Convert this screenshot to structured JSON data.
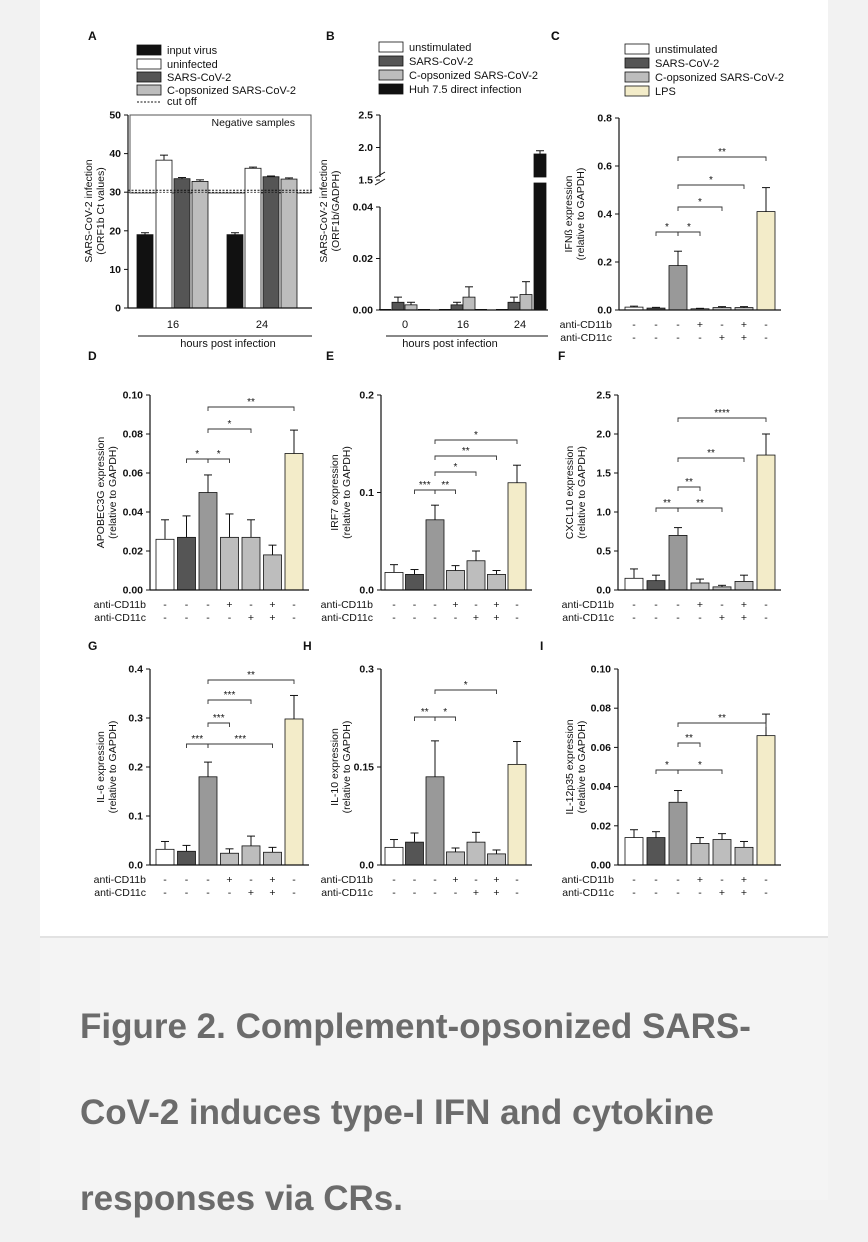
{
  "caption": {
    "text": "Figure 2. Complement-opsonized SARS-CoV-2 induces type-I IFN and cytokine responses via CRs."
  },
  "colors": {
    "black": "#111111",
    "white": "#ffffff",
    "dark": "#555555",
    "mid": "#999999",
    "light": "#bdbdbd",
    "lps": "#f3ecc9",
    "text": "#6b6b6b"
  },
  "chart_data": [
    {
      "id": "A",
      "type": "bar",
      "ylabel": [
        "SARS-CoV-2 infection",
        "(ORF1b Ct values)"
      ],
      "xlabel": "hours post infection",
      "ylim": [
        0,
        50
      ],
      "yticks": [
        "0",
        "10",
        "20",
        "30",
        "40",
        "50"
      ],
      "categories": [
        "16",
        "24"
      ],
      "legend": [
        "input virus",
        "uninfected",
        "SARS-CoV-2",
        "C-opsonized SARS-CoV-2",
        "cut off"
      ],
      "annotation": "Negative samples",
      "cutoff": 30.5,
      "series": [
        {
          "name": "input virus",
          "values": [
            19,
            19
          ],
          "errors": [
            0.5,
            0.5
          ]
        },
        {
          "name": "uninfected",
          "values": [
            38.3,
            36.2
          ],
          "errors": [
            1.3,
            0.3
          ]
        },
        {
          "name": "SARS-CoV-2",
          "values": [
            33.5,
            34
          ],
          "errors": [
            0.3,
            0.2
          ]
        },
        {
          "name": "C-opsonized SARS-CoV-2",
          "values": [
            32.8,
            33.4
          ],
          "errors": [
            0.4,
            0.3
          ]
        }
      ]
    },
    {
      "id": "B",
      "type": "bar",
      "ylabel": [
        "SARS-CoV-2 infection",
        "(ORF1b/GADPH)"
      ],
      "xlabel": "hours post infection",
      "yticks": [
        "0.00",
        "0.02",
        "0.04",
        "1.5",
        "2.0",
        "2.5"
      ],
      "categories": [
        "0",
        "16",
        "24"
      ],
      "legend": [
        "unstimulated",
        "SARS-CoV-2",
        "C-opsonized SARS-CoV-2",
        "Huh 7.5 direct infection"
      ],
      "series": [
        {
          "name": "unstimulated",
          "values": [
            0,
            0,
            0
          ],
          "errors": [
            0,
            0,
            0
          ]
        },
        {
          "name": "SARS-CoV-2",
          "values": [
            0.003,
            0.002,
            0.003
          ],
          "errors": [
            0.002,
            0.001,
            0.002
          ]
        },
        {
          "name": "C-opsonized SARS-CoV-2",
          "values": [
            0.002,
            0.005,
            0.006
          ],
          "errors": [
            0.001,
            0.004,
            0.005
          ]
        },
        {
          "name": "Huh 7.5 direct infection",
          "values": [
            0,
            0,
            1.9
          ],
          "errors": [
            0,
            0,
            0.05
          ]
        }
      ]
    },
    {
      "id": "C",
      "type": "bar",
      "ylabel": [
        "IFNß expression",
        "(relative to GAPDH)"
      ],
      "ylim": [
        0,
        0.8
      ],
      "yticks": [
        "0.0",
        "0.2",
        "0.4",
        "0.6",
        "0.8"
      ],
      "legend": [
        "unstimulated",
        "SARS-CoV-2",
        "C-opsonized SARS-CoV-2",
        "LPS"
      ],
      "values": [
        0.012,
        0.008,
        0.185,
        0.005,
        0.01,
        0.01,
        0.41
      ],
      "errors": [
        0.004,
        0.003,
        0.06,
        0.002,
        0.004,
        0.004,
        0.1
      ],
      "sig": [
        "**",
        "*",
        "*",
        "*",
        "*"
      ]
    },
    {
      "id": "D",
      "type": "bar",
      "ylabel": [
        "APOBEC3G expression",
        "(relative to GAPDH)"
      ],
      "ylim": [
        0,
        0.1
      ],
      "yticks": [
        "0.00",
        "0.02",
        "0.04",
        "0.06",
        "0.08",
        "0.10"
      ],
      "values": [
        0.026,
        0.027,
        0.05,
        0.027,
        0.027,
        0.018,
        0.07
      ],
      "errors": [
        0.01,
        0.011,
        0.009,
        0.012,
        0.009,
        0.005,
        0.012
      ],
      "sig": [
        "**",
        "*",
        "*",
        "*"
      ]
    },
    {
      "id": "E",
      "type": "bar",
      "ylabel": [
        "IRF7 expression",
        "(relative to GAPDH)"
      ],
      "ylim": [
        0,
        0.2
      ],
      "yticks": [
        "0.0",
        "0.1",
        "0.2"
      ],
      "values": [
        0.018,
        0.016,
        0.072,
        0.02,
        0.03,
        0.016,
        0.11
      ],
      "errors": [
        0.008,
        0.005,
        0.015,
        0.005,
        0.01,
        0.004,
        0.018
      ],
      "sig": [
        "*",
        "**",
        "*",
        "***",
        "**"
      ]
    },
    {
      "id": "F",
      "type": "bar",
      "ylabel": [
        "CXCL10 expression",
        "(relative to GAPDH)"
      ],
      "ylim": [
        0,
        2.5
      ],
      "yticks": [
        "0.0",
        "0.5",
        "1.0",
        "1.5",
        "2.0",
        "2.5"
      ],
      "values": [
        0.15,
        0.12,
        0.7,
        0.09,
        0.04,
        0.11,
        1.73
      ],
      "errors": [
        0.12,
        0.07,
        0.1,
        0.05,
        0.02,
        0.08,
        0.27
      ],
      "sig": [
        "****",
        "**",
        "**",
        "**",
        "**"
      ]
    },
    {
      "id": "G",
      "type": "bar",
      "ylabel": [
        "IL-6 expression",
        "(relative to GAPDH)"
      ],
      "ylim": [
        0,
        0.4
      ],
      "yticks": [
        "0.0",
        "0.1",
        "0.2",
        "0.3",
        "0.4"
      ],
      "values": [
        0.032,
        0.028,
        0.18,
        0.024,
        0.039,
        0.026,
        0.298
      ],
      "errors": [
        0.016,
        0.012,
        0.03,
        0.009,
        0.02,
        0.01,
        0.048
      ],
      "sig": [
        "**",
        "***",
        "***",
        "***",
        "***"
      ]
    },
    {
      "id": "H",
      "type": "bar",
      "ylabel": [
        "IL-10 expression",
        "(relative to GAPDH)"
      ],
      "ylim": [
        0,
        0.3
      ],
      "yticks": [
        "0.0",
        "0.15",
        "0.3"
      ],
      "values": [
        0.027,
        0.035,
        0.135,
        0.02,
        0.035,
        0.017,
        0.154
      ],
      "errors": [
        0.012,
        0.014,
        0.055,
        0.006,
        0.015,
        0.006,
        0.035
      ],
      "sig": [
        "*",
        "**",
        "*"
      ]
    },
    {
      "id": "I",
      "type": "bar",
      "ylabel": [
        "IL-12p35 expression",
        "(relative to GAPDH)"
      ],
      "ylim": [
        0,
        0.1
      ],
      "yticks": [
        "0.00",
        "0.02",
        "0.04",
        "0.06",
        "0.08",
        "0.10"
      ],
      "values": [
        0.014,
        0.014,
        0.032,
        0.011,
        0.013,
        0.009,
        0.066
      ],
      "errors": [
        0.004,
        0.003,
        0.006,
        0.003,
        0.003,
        0.003,
        0.011
      ],
      "sig": [
        "**",
        "**",
        "*",
        "*"
      ]
    }
  ],
  "treatments": {
    "anti_cd11b_label": "anti-CD11b",
    "anti_cd11c_label": "anti-CD11c",
    "anti_cd11b": [
      "-",
      "-",
      "-",
      "+",
      "-",
      "+",
      "-"
    ],
    "anti_cd11c": [
      "-",
      "-",
      "-",
      "-",
      "+",
      "+",
      "-"
    ]
  }
}
